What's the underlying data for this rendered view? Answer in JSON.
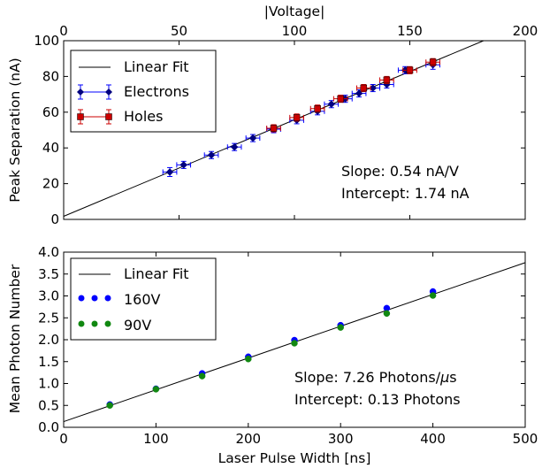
{
  "chart_data": [
    {
      "type": "scatter",
      "xlabel": "",
      "ylabel": "Peak Separation (nA)",
      "top_xlabel": "|Voltage|",
      "xlim": [
        0,
        200
      ],
      "ylim": [
        0,
        100
      ],
      "xticks": [
        0,
        50,
        100,
        150,
        200
      ],
      "yticks": [
        0,
        20,
        40,
        60,
        80,
        100
      ],
      "grid": false,
      "legend_position": "top-left",
      "fit": {
        "label": "Linear Fit",
        "slope": 0.54,
        "intercept": 1.74,
        "color": "#000000"
      },
      "annotation": {
        "line1": "Slope: 0.54 nA/V",
        "line2": "Intercept: 1.74 nA"
      },
      "series": [
        {
          "name": "Electrons",
          "color": "#0000ff",
          "marker": "diamond",
          "x": [
            46,
            52,
            64,
            74,
            82,
            91,
            101,
            110,
            116,
            122,
            128,
            134,
            140,
            148,
            160
          ],
          "y": [
            26.5,
            30.5,
            36,
            40.5,
            45.5,
            50.5,
            55.5,
            60.5,
            64.5,
            67.5,
            70.5,
            73.5,
            75.5,
            83.5,
            86.5
          ],
          "xerr": [
            3,
            3,
            3,
            3,
            3,
            3,
            3,
            3,
            3,
            3,
            3,
            3,
            3,
            3,
            3
          ],
          "yerr": [
            2.5,
            2,
            2,
            2,
            2,
            2,
            2,
            2,
            2,
            2,
            2,
            2,
            2,
            2,
            2.5
          ]
        },
        {
          "name": "Holes",
          "color": "#cc0000",
          "marker": "square",
          "x": [
            91,
            101,
            110,
            120,
            130,
            140,
            150,
            160
          ],
          "y": [
            51,
            57,
            62,
            67.5,
            73.5,
            78,
            83.5,
            88
          ],
          "xerr": [
            3,
            3,
            3,
            3,
            3,
            3,
            3,
            3
          ],
          "yerr": [
            2,
            2,
            2,
            2,
            2,
            2,
            2,
            2
          ]
        }
      ]
    },
    {
      "type": "scatter",
      "xlabel": "Laser Pulse Width [ns]",
      "ylabel": "Mean Photon Number",
      "xlim": [
        0,
        500
      ],
      "ylim": [
        0,
        4.0
      ],
      "xticks": [
        0,
        100,
        200,
        300,
        400,
        500
      ],
      "yticks": [
        0.0,
        0.5,
        1.0,
        1.5,
        2.0,
        2.5,
        3.0,
        3.5,
        4.0
      ],
      "grid": false,
      "legend_position": "top-left",
      "fit": {
        "label": "Linear Fit",
        "slope": 0.00726,
        "intercept": 0.13,
        "color": "#000000"
      },
      "annotation": {
        "line1": "Slope: 7.26 Photons/",
        "mu": "μ",
        "unit": "s",
        "line2": "Intercept: 0.13 Photons"
      },
      "series": [
        {
          "name": "160V",
          "color": "#0000ff",
          "x": [
            50,
            100,
            150,
            200,
            250,
            300,
            350,
            400
          ],
          "y": [
            0.52,
            0.88,
            1.23,
            1.61,
            1.99,
            2.33,
            2.72,
            3.1
          ]
        },
        {
          "name": "90V",
          "color": "#118811",
          "x": [
            50,
            100,
            150,
            200,
            250,
            300,
            350,
            400
          ],
          "y": [
            0.5,
            0.87,
            1.17,
            1.56,
            1.92,
            2.28,
            2.6,
            3.01
          ]
        }
      ]
    }
  ]
}
